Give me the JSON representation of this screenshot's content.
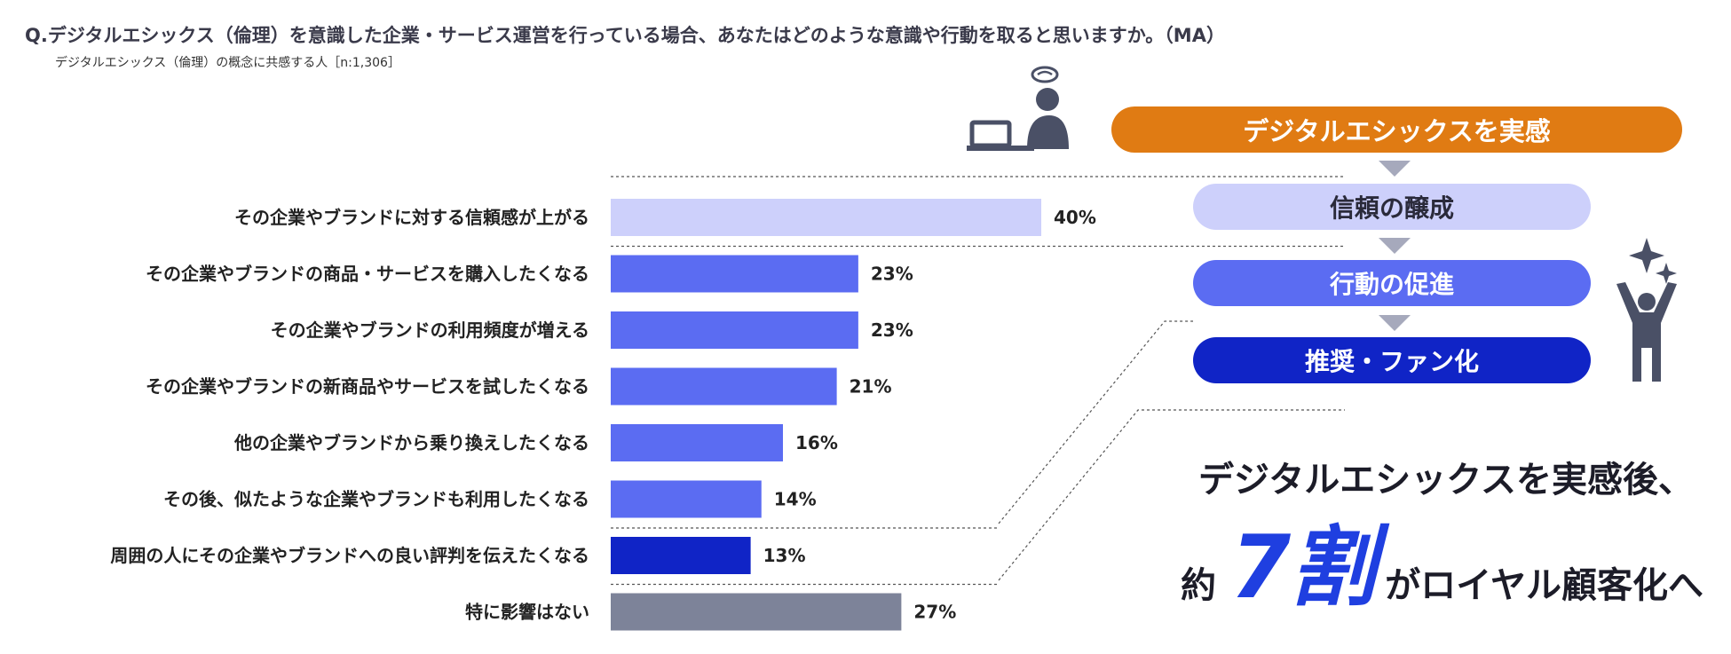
{
  "title": "Q.デジタルエシックス（倫理）を意識した企業・サービス運営を行っている場合、あなたはどのような意識や行動を取ると思いますか。（MA）",
  "subtitle": "デジタルエシックス（倫理）の概念に共感する人［n:1,306］",
  "chart_data": {
    "type": "bar",
    "orientation": "horizontal",
    "categories": [
      "その企業やブランドに対する信頼感が上がる",
      "その企業やブランドの商品・サービスを購入したくなる",
      "その企業やブランドの利用頻度が増える",
      "その企業やブランドの新商品やサービスを試したくなる",
      "他の企業やブランドから乗り換えしたくなる",
      "その後、似たような企業やブランドも利用したくなる",
      "周囲の人にその企業やブランドへの良い評判を伝えたくなる",
      "特に影響はない"
    ],
    "values": [
      40,
      23,
      23,
      21,
      16,
      14,
      13,
      27
    ],
    "value_labels": [
      "40%",
      "23%",
      "23%",
      "21%",
      "16%",
      "14%",
      "13%",
      "27%"
    ],
    "bar_colors": [
      "#cdd0fb",
      "#5b6cf2",
      "#5b6cf2",
      "#5b6cf2",
      "#5b6cf2",
      "#5b6cf2",
      "#1024c6",
      "#7d8399"
    ],
    "xlim": [
      0,
      40
    ],
    "grid": false
  },
  "flow": {
    "top": "デジタルエシックスを実感",
    "steps": [
      "信頼の醸成",
      "行動の促進",
      "推奨・ファン化"
    ],
    "colors": [
      "#e07b13",
      "#cdd0fb",
      "#5b6cf2",
      "#1024c6"
    ],
    "arrow_color": "#a6a9bc"
  },
  "summary": {
    "line1": "デジタルエシックスを実感後、",
    "approx": "約",
    "big": "7割",
    "rest": "がロイヤル顧客化へ",
    "accent": "#1f3fe0"
  },
  "icons": [
    "person-at-laptop-icon",
    "celebrating-person-icon",
    "sparkle-icon"
  ]
}
